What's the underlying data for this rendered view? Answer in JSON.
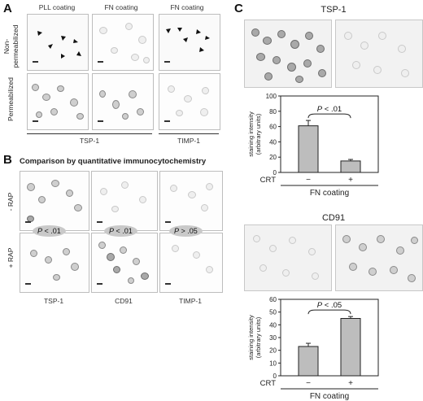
{
  "panel_a": {
    "letter": "A",
    "columns": [
      "PLL coating",
      "FN coating",
      "FN coating"
    ],
    "row_labels": [
      "Non-\npermeabilized",
      "Permeabilized"
    ],
    "row_label_line1": "Non-",
    "row_label_line2": "permeabilized",
    "row_label_2": "Permeabilized",
    "group_labels": [
      "TSP-1",
      "TIMP-1"
    ]
  },
  "panel_b": {
    "letter": "B",
    "title": "Comparison by quantitative immunocytochemistry",
    "row_labels": [
      "- RAP",
      "+ RAP"
    ],
    "p_values": [
      {
        "prefix": "P",
        "op": " < .01"
      },
      {
        "prefix": "P",
        "op": " < .01"
      },
      {
        "prefix": "P",
        "op": " > .05"
      }
    ],
    "column_labels": [
      "TSP-1",
      "CD91",
      "TIMP-1"
    ]
  },
  "panel_c": {
    "letter": "C",
    "top_title": "TSP-1",
    "bottom_title": "CD91",
    "charts": [
      {
        "type": "bar",
        "categories": [
          "−",
          "+"
        ],
        "values": [
          61,
          15
        ],
        "errors": [
          7,
          2
        ],
        "ylim": [
          0,
          100
        ],
        "yticks": [
          0,
          20,
          40,
          60,
          80,
          100
        ],
        "ylabel": "staining intensity (arbitrary units)",
        "ylabel_line1": "staining intensity",
        "ylabel_line2": "(arbitrary units)",
        "xlabel_prefix": "CRT",
        "group_label": "FN coating",
        "annotation_p": "P",
        "annotation_op": " < .01",
        "bar_color": "#bdbdbd"
      },
      {
        "type": "bar",
        "categories": [
          "−",
          "+"
        ],
        "values": [
          23,
          45
        ],
        "errors": [
          2.5,
          1.5
        ],
        "ylim": [
          0,
          60
        ],
        "yticks": [
          0,
          10,
          20,
          30,
          40,
          50,
          60
        ],
        "ylabel": "staining intensity (arbitrary units)",
        "ylabel_line1": "staining intensity",
        "ylabel_line2": "(arbitrary units)",
        "xlabel_prefix": "CRT",
        "group_label": "FN coating",
        "annotation_p": "P",
        "annotation_op": " < .05",
        "bar_color": "#bdbdbd"
      }
    ]
  }
}
